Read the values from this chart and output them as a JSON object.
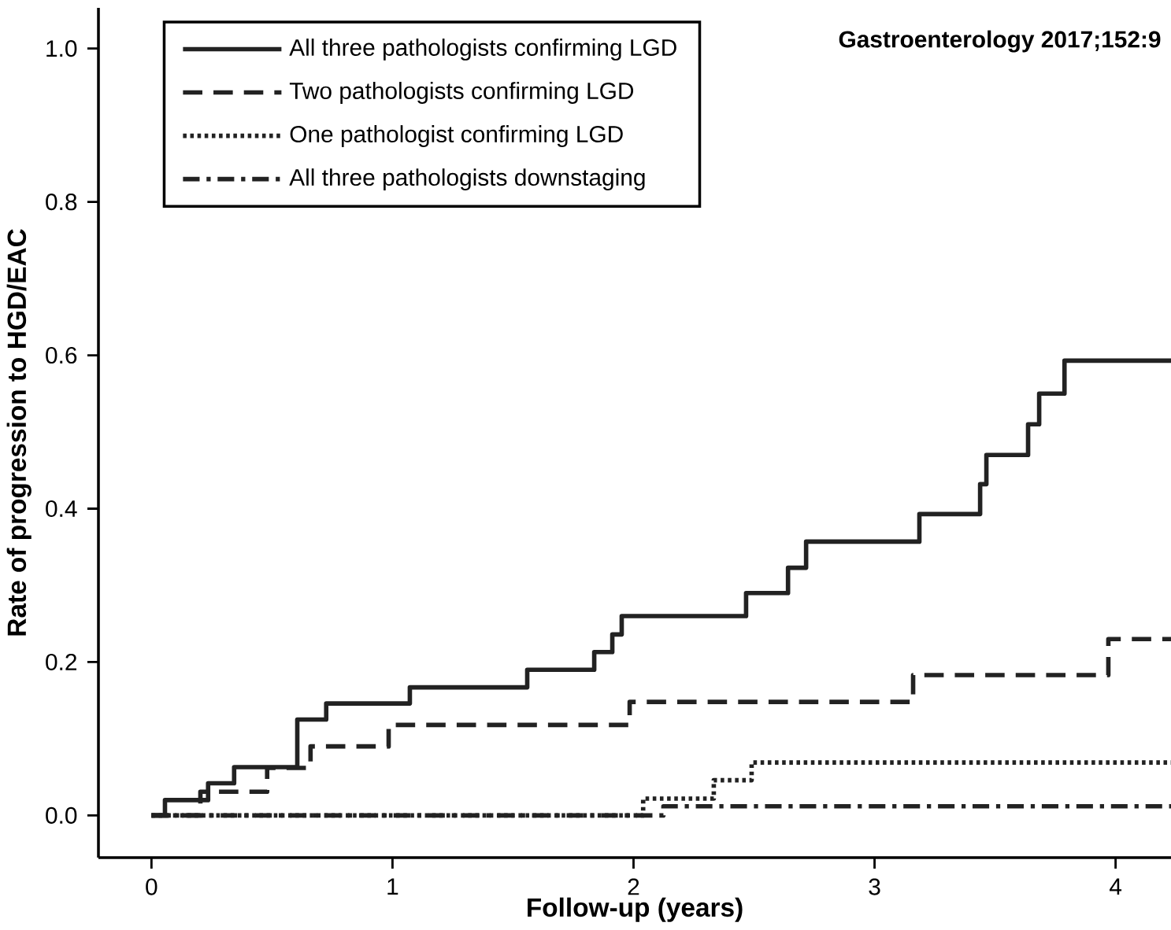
{
  "chart_data": {
    "type": "step",
    "xlabel": "Follow-up (years)",
    "ylabel": "Rate of progression to HGD/EAC",
    "xlim": [
      -0.22,
      4.23
    ],
    "ylim": [
      -0.055,
      1.053
    ],
    "xticks": [
      0,
      1,
      2,
      3,
      4
    ],
    "yticks": [
      {
        "value": 0,
        "label": "0.0"
      },
      {
        "value": 0.2,
        "label": "0.2"
      },
      {
        "value": 0.4,
        "label": "0.4"
      },
      {
        "value": 0.6,
        "label": "0.6"
      },
      {
        "value": 0.8,
        "label": "0.8"
      },
      {
        "value": 1,
        "label": "1.0"
      }
    ],
    "grid": false,
    "legend": "top left",
    "annotations": [
      "Gastroenterology 2017;152:9"
    ],
    "series": [
      {
        "name": "All three pathologists confirming LGD",
        "color": "#222222",
        "line_style": "solid",
        "x": [
          0,
          0.056,
          0.235,
          0.343,
          0.605,
          0.725,
          1.072,
          1.559,
          1.837,
          1.912,
          1.951,
          2.467,
          2.641,
          2.716,
          3.186,
          3.438,
          3.464,
          3.637,
          3.683,
          3.788,
          4.23
        ],
        "values": [
          0,
          0.02,
          0.042,
          0.063,
          0.125,
          0.146,
          0.167,
          0.19,
          0.213,
          0.236,
          0.26,
          0.29,
          0.323,
          0.357,
          0.393,
          0.432,
          0.47,
          0.51,
          0.55,
          0.593,
          0.593
        ]
      },
      {
        "name": "Two pathologists confirming LGD",
        "color": "#222222",
        "line_style": "dashed",
        "x": [
          0,
          0.203,
          0.48,
          0.66,
          0.984,
          1.984,
          3.16,
          3.97,
          4.23
        ],
        "values": [
          0,
          0.031,
          0.062,
          0.09,
          0.118,
          0.148,
          0.183,
          0.23,
          0.23
        ]
      },
      {
        "name": "One pathologist confirming LGD",
        "color": "#222222",
        "line_style": "dotted",
        "x": [
          0,
          2.04,
          2.333,
          2.49,
          4.23
        ],
        "values": [
          0,
          0.022,
          0.046,
          0.069,
          0.069
        ]
      },
      {
        "name": "All three pathologists downstaging",
        "color": "#222222",
        "line_style": "dashdot",
        "x": [
          0,
          2.124,
          4.23
        ],
        "values": [
          0,
          0.012,
          0.012
        ]
      }
    ]
  }
}
